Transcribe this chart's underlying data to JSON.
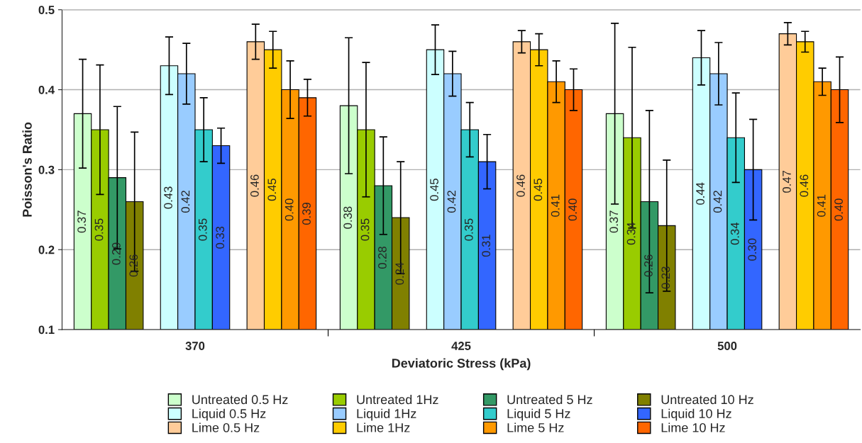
{
  "chart_data": {
    "type": "bar",
    "xlabel": "Deviatoric Stress (kPa)",
    "ylabel": "Poisson's Ratio",
    "categories": [
      "370",
      "425",
      "500"
    ],
    "ylim": [
      0.1,
      0.5
    ],
    "yticks": [
      0.1,
      0.2,
      0.3,
      0.4,
      0.5
    ],
    "grid": "y",
    "legend": "bottom",
    "series": [
      {
        "name": "Untreated 0.5 Hz",
        "color": "#ccffcc",
        "values": [
          0.37,
          0.38,
          0.37
        ],
        "errors": [
          0.068,
          0.085,
          0.113
        ],
        "value_labels": [
          "0.37",
          "0.38",
          "0.37"
        ]
      },
      {
        "name": "Untreated 1Hz",
        "color": "#99cc00",
        "values": [
          0.35,
          0.35,
          0.34
        ],
        "errors": [
          0.081,
          0.084,
          0.113
        ],
        "value_labels": [
          "0.35",
          "0.35",
          "0.34"
        ]
      },
      {
        "name": "Untreated 5 Hz",
        "color": "#339966",
        "values": [
          0.29,
          0.28,
          0.26
        ],
        "errors": [
          0.089,
          0.061,
          0.114
        ],
        "value_labels": [
          "0.29",
          "0.28",
          "0.26"
        ]
      },
      {
        "name": "Untreated 10 Hz",
        "color": "#808000",
        "values": [
          0.26,
          0.24,
          0.23
        ],
        "errors": [
          0.087,
          0.07,
          0.082
        ],
        "value_labels": [
          "0.26",
          "0.24",
          "0.23"
        ]
      },
      {
        "name": "Liquid 0.5 Hz",
        "color": "#ccffff",
        "values": [
          0.43,
          0.45,
          0.44
        ],
        "errors": [
          0.036,
          0.031,
          0.034
        ],
        "value_labels": [
          "0.43",
          "0.45",
          "0.44"
        ]
      },
      {
        "name": "Liquid 1Hz",
        "color": "#99ccff",
        "values": [
          0.42,
          0.42,
          0.42
        ],
        "errors": [
          0.038,
          0.028,
          0.039
        ],
        "value_labels": [
          "0.42",
          "0.42",
          "0.42"
        ]
      },
      {
        "name": "Liquid 5 Hz",
        "color": "#33cccc",
        "values": [
          0.35,
          0.35,
          0.34
        ],
        "errors": [
          0.04,
          0.034,
          0.056
        ],
        "value_labels": [
          "0.35",
          "0.35",
          "0.34"
        ]
      },
      {
        "name": "Liquid 10 Hz",
        "color": "#3366ff",
        "values": [
          0.33,
          0.31,
          0.3
        ],
        "errors": [
          0.022,
          0.034,
          0.063
        ],
        "value_labels": [
          "0.33",
          "0.31",
          "0.30"
        ]
      },
      {
        "name": "Lime 0.5 Hz",
        "color": "#ffcc99",
        "values": [
          0.46,
          0.46,
          0.47
        ],
        "errors": [
          0.022,
          0.014,
          0.014
        ],
        "value_labels": [
          "0.46",
          "0.46",
          "0.47"
        ]
      },
      {
        "name": "Lime 1Hz",
        "color": "#ffcc00",
        "values": [
          0.45,
          0.45,
          0.46
        ],
        "errors": [
          0.023,
          0.02,
          0.013
        ],
        "value_labels": [
          "0.45",
          "0.45",
          "0.46"
        ]
      },
      {
        "name": "Lime 5 Hz",
        "color": "#ff9900",
        "values": [
          0.4,
          0.41,
          0.41
        ],
        "errors": [
          0.036,
          0.026,
          0.017
        ],
        "value_labels": [
          "0.40",
          "0.41",
          "0.41"
        ]
      },
      {
        "name": "Lime 10 Hz",
        "color": "#ff6600",
        "values": [
          0.39,
          0.4,
          0.4
        ],
        "errors": [
          0.023,
          0.026,
          0.041
        ],
        "value_labels": [
          "0.39",
          "0.40",
          "0.40"
        ]
      }
    ]
  }
}
